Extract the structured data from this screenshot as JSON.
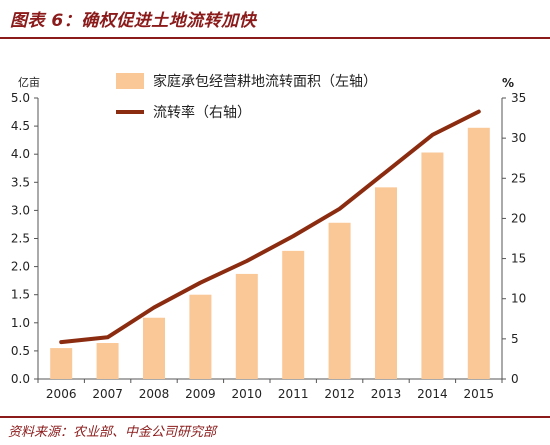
{
  "title": "图表 6：确权促进土地流转加快",
  "source": "资料来源：农业部、中金公司研究部",
  "colors": {
    "bar": "#fac796",
    "line": "#8b2b10",
    "accent": "#8b1a1a"
  },
  "chart_data": {
    "type": "bar",
    "categories": [
      "2006",
      "2007",
      "2008",
      "2009",
      "2010",
      "2011",
      "2012",
      "2013",
      "2014",
      "2015"
    ],
    "y_left": {
      "unit": "亿亩",
      "ylim": [
        0,
        5.0
      ],
      "ticks": [
        "0.0",
        "0.5",
        "1.0",
        "1.5",
        "2.0",
        "2.5",
        "3.0",
        "3.5",
        "4.0",
        "4.5",
        "5.0"
      ]
    },
    "y_right": {
      "unit": "%",
      "ylim": [
        0,
        35
      ],
      "ticks": [
        "0",
        "5",
        "10",
        "15",
        "20",
        "25",
        "30",
        "35"
      ]
    },
    "series": [
      {
        "name": "家庭承包经营耕地流转面积（左轴）",
        "type": "bar",
        "axis": "left",
        "values": [
          0.55,
          0.64,
          1.09,
          1.5,
          1.87,
          2.28,
          2.78,
          3.41,
          4.03,
          4.47
        ]
      },
      {
        "name": "流转率（右轴）",
        "type": "line",
        "axis": "right",
        "values": [
          4.6,
          5.2,
          8.9,
          12.0,
          14.7,
          17.8,
          21.2,
          25.8,
          30.4,
          33.3
        ]
      }
    ],
    "legend_position": "top-left",
    "grid": false
  }
}
